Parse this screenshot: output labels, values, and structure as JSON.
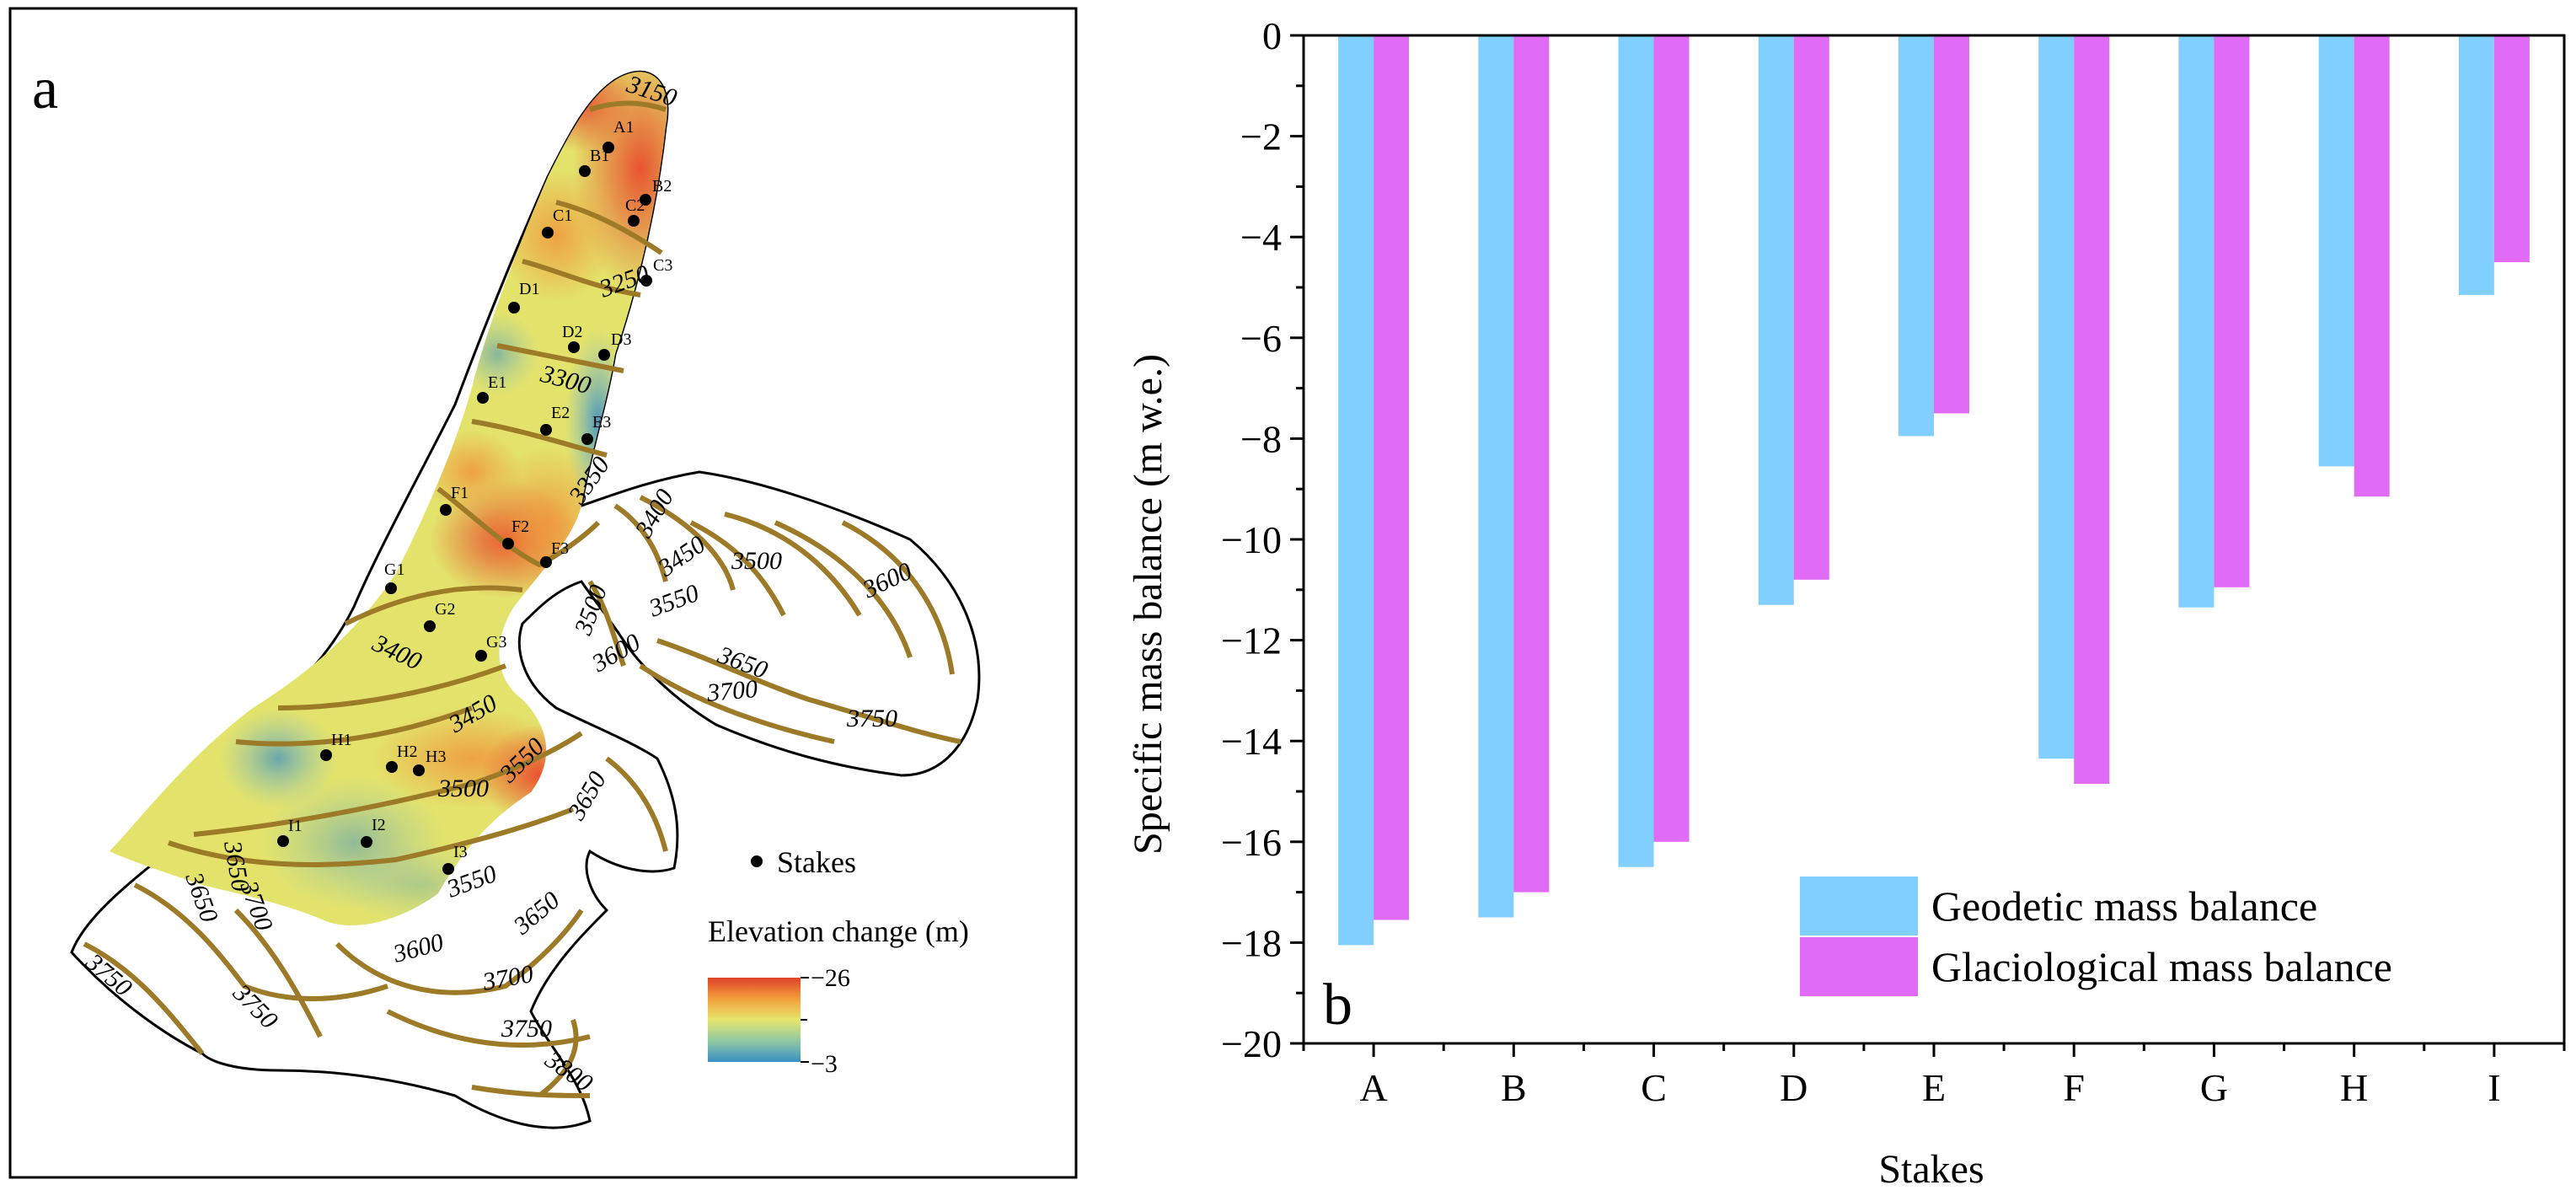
{
  "panel_a": {
    "label": "a",
    "legend_stakes": "Stakes",
    "colorbar_title": "Elevation change (m)",
    "colorbar_max": "−26",
    "colorbar_min": "−3",
    "contours": [
      "3150",
      "3250",
      "3300",
      "3350",
      "3400",
      "3450",
      "3500",
      "3550",
      "3600",
      "3650",
      "3700",
      "3750",
      "3800"
    ],
    "stakes": [
      "A1",
      "B1",
      "B2",
      "C1",
      "C2",
      "C3",
      "D1",
      "D2",
      "D3",
      "E1",
      "E2",
      "E3",
      "F1",
      "F2",
      "F3",
      "G1",
      "G2",
      "G3",
      "H1",
      "H2",
      "H3",
      "I1",
      "I2",
      "I3"
    ],
    "colors": {
      "outline": "#000000",
      "contour": "#9c7a28",
      "high": "#e8452a",
      "mid": "#e3e36b",
      "low": "#3a8fc4"
    }
  },
  "chart_data": {
    "type": "bar",
    "panel_label": "b",
    "title": "",
    "xlabel": "Stakes",
    "ylabel": "Specific mass balance (m w.e.)",
    "categories": [
      "A",
      "B",
      "C",
      "D",
      "E",
      "F",
      "G",
      "H",
      "I"
    ],
    "series": [
      {
        "name": "Geodetic mass balance",
        "color": "#80cfff",
        "values": [
          -18.05,
          -17.5,
          -16.5,
          -11.3,
          -7.95,
          -14.35,
          -11.35,
          -8.55,
          -5.15
        ]
      },
      {
        "name": "Glaciological mass balance",
        "color": "#e06cf5",
        "values": [
          -17.55,
          -17.0,
          -16.0,
          -10.8,
          -7.5,
          -14.85,
          -10.95,
          -9.15,
          -4.5
        ]
      }
    ],
    "ylim": [
      -20,
      0
    ],
    "yticks": [
      "0",
      "−2",
      "−4",
      "−6",
      "−8",
      "−10",
      "−12",
      "−14",
      "−16",
      "−18",
      "−20"
    ],
    "grid": false,
    "legend_position": "bottom-right"
  }
}
